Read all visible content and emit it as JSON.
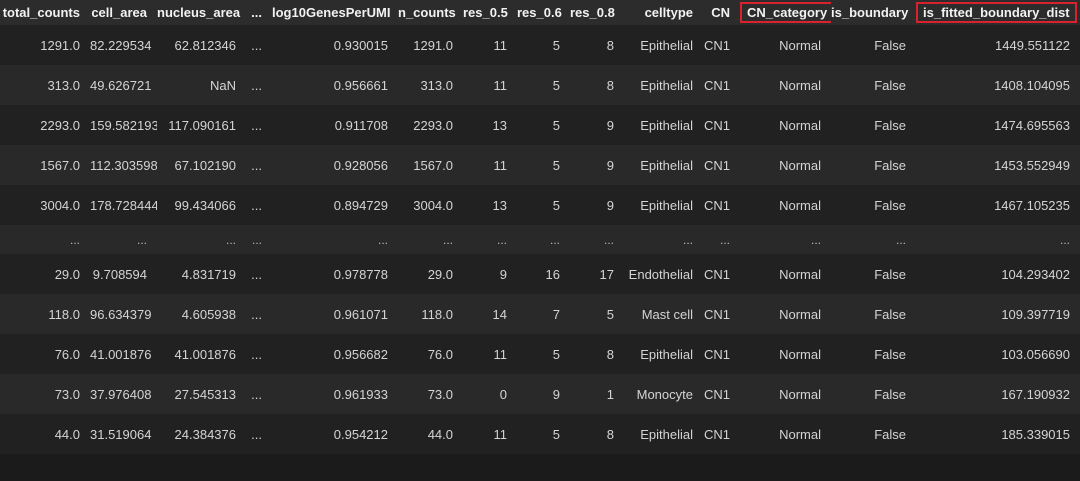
{
  "table": {
    "columns": [
      {
        "label": "total_counts",
        "highlighted": false
      },
      {
        "label": "cell_area",
        "highlighted": false
      },
      {
        "label": "nucleus_area",
        "highlighted": false
      },
      {
        "label": "...",
        "highlighted": false
      },
      {
        "label": "log10GenesPerUMI",
        "highlighted": false
      },
      {
        "label": "n_counts",
        "highlighted": false
      },
      {
        "label": "res_0.5",
        "highlighted": false
      },
      {
        "label": "res_0.6",
        "highlighted": false
      },
      {
        "label": "res_0.8",
        "highlighted": false
      },
      {
        "label": "celltype",
        "highlighted": false
      },
      {
        "label": "CN",
        "highlighted": false
      },
      {
        "label": "CN_category",
        "highlighted": true
      },
      {
        "label": "is_boundary",
        "highlighted": false
      },
      {
        "label": "is_fitted_boundary_dist",
        "highlighted": true
      }
    ],
    "rows": [
      [
        "1291.0",
        "82.229534",
        "62.812346",
        "...",
        "0.930015",
        "1291.0",
        "11",
        "5",
        "8",
        "Epithelial",
        "CN1",
        "Normal",
        "False",
        "1449.551122"
      ],
      [
        "313.0",
        "49.626721",
        "NaN",
        "...",
        "0.956661",
        "313.0",
        "11",
        "5",
        "8",
        "Epithelial",
        "CN1",
        "Normal",
        "False",
        "1408.104095"
      ],
      [
        "2293.0",
        "159.582193",
        "117.090161",
        "...",
        "0.911708",
        "2293.0",
        "13",
        "5",
        "9",
        "Epithelial",
        "CN1",
        "Normal",
        "False",
        "1474.695563"
      ],
      [
        "1567.0",
        "112.303598",
        "67.102190",
        "...",
        "0.928056",
        "1567.0",
        "11",
        "5",
        "9",
        "Epithelial",
        "CN1",
        "Normal",
        "False",
        "1453.552949"
      ],
      [
        "3004.0",
        "178.728444",
        "99.434066",
        "...",
        "0.894729",
        "3004.0",
        "13",
        "5",
        "9",
        "Epithelial",
        "CN1",
        "Normal",
        "False",
        "1467.105235"
      ],
      [
        "...",
        "...",
        "...",
        "...",
        "...",
        "...",
        "...",
        "...",
        "...",
        "...",
        "...",
        "...",
        "...",
        "..."
      ],
      [
        "29.0",
        "9.708594",
        "4.831719",
        "...",
        "0.978778",
        "29.0",
        "9",
        "16",
        "17",
        "Endothelial",
        "CN1",
        "Normal",
        "False",
        "104.293402"
      ],
      [
        "118.0",
        "96.634379",
        "4.605938",
        "...",
        "0.961071",
        "118.0",
        "14",
        "7",
        "5",
        "Mast cell",
        "CN1",
        "Normal",
        "False",
        "109.397719"
      ],
      [
        "76.0",
        "41.001876",
        "41.001876",
        "...",
        "0.956682",
        "76.0",
        "11",
        "5",
        "8",
        "Epithelial",
        "CN1",
        "Normal",
        "False",
        "103.056690"
      ],
      [
        "73.0",
        "37.976408",
        "27.545313",
        "...",
        "0.961933",
        "73.0",
        "0",
        "9",
        "1",
        "Monocyte",
        "CN1",
        "Normal",
        "False",
        "167.190932"
      ],
      [
        "44.0",
        "31.519064",
        "24.384376",
        "...",
        "0.954212",
        "44.0",
        "11",
        "5",
        "8",
        "Epithelial",
        "CN1",
        "Normal",
        "False",
        "185.339015"
      ]
    ],
    "ellipsis_row_index": 5
  },
  "colors": {
    "highlight_border": "#d8232e",
    "header_bg": "#2c2c2d",
    "row_dark": "#212122",
    "row_light": "#292929",
    "page_bg": "#1b1b1c",
    "text": "#d4d4d4",
    "header_text": "#f2f2f2"
  }
}
